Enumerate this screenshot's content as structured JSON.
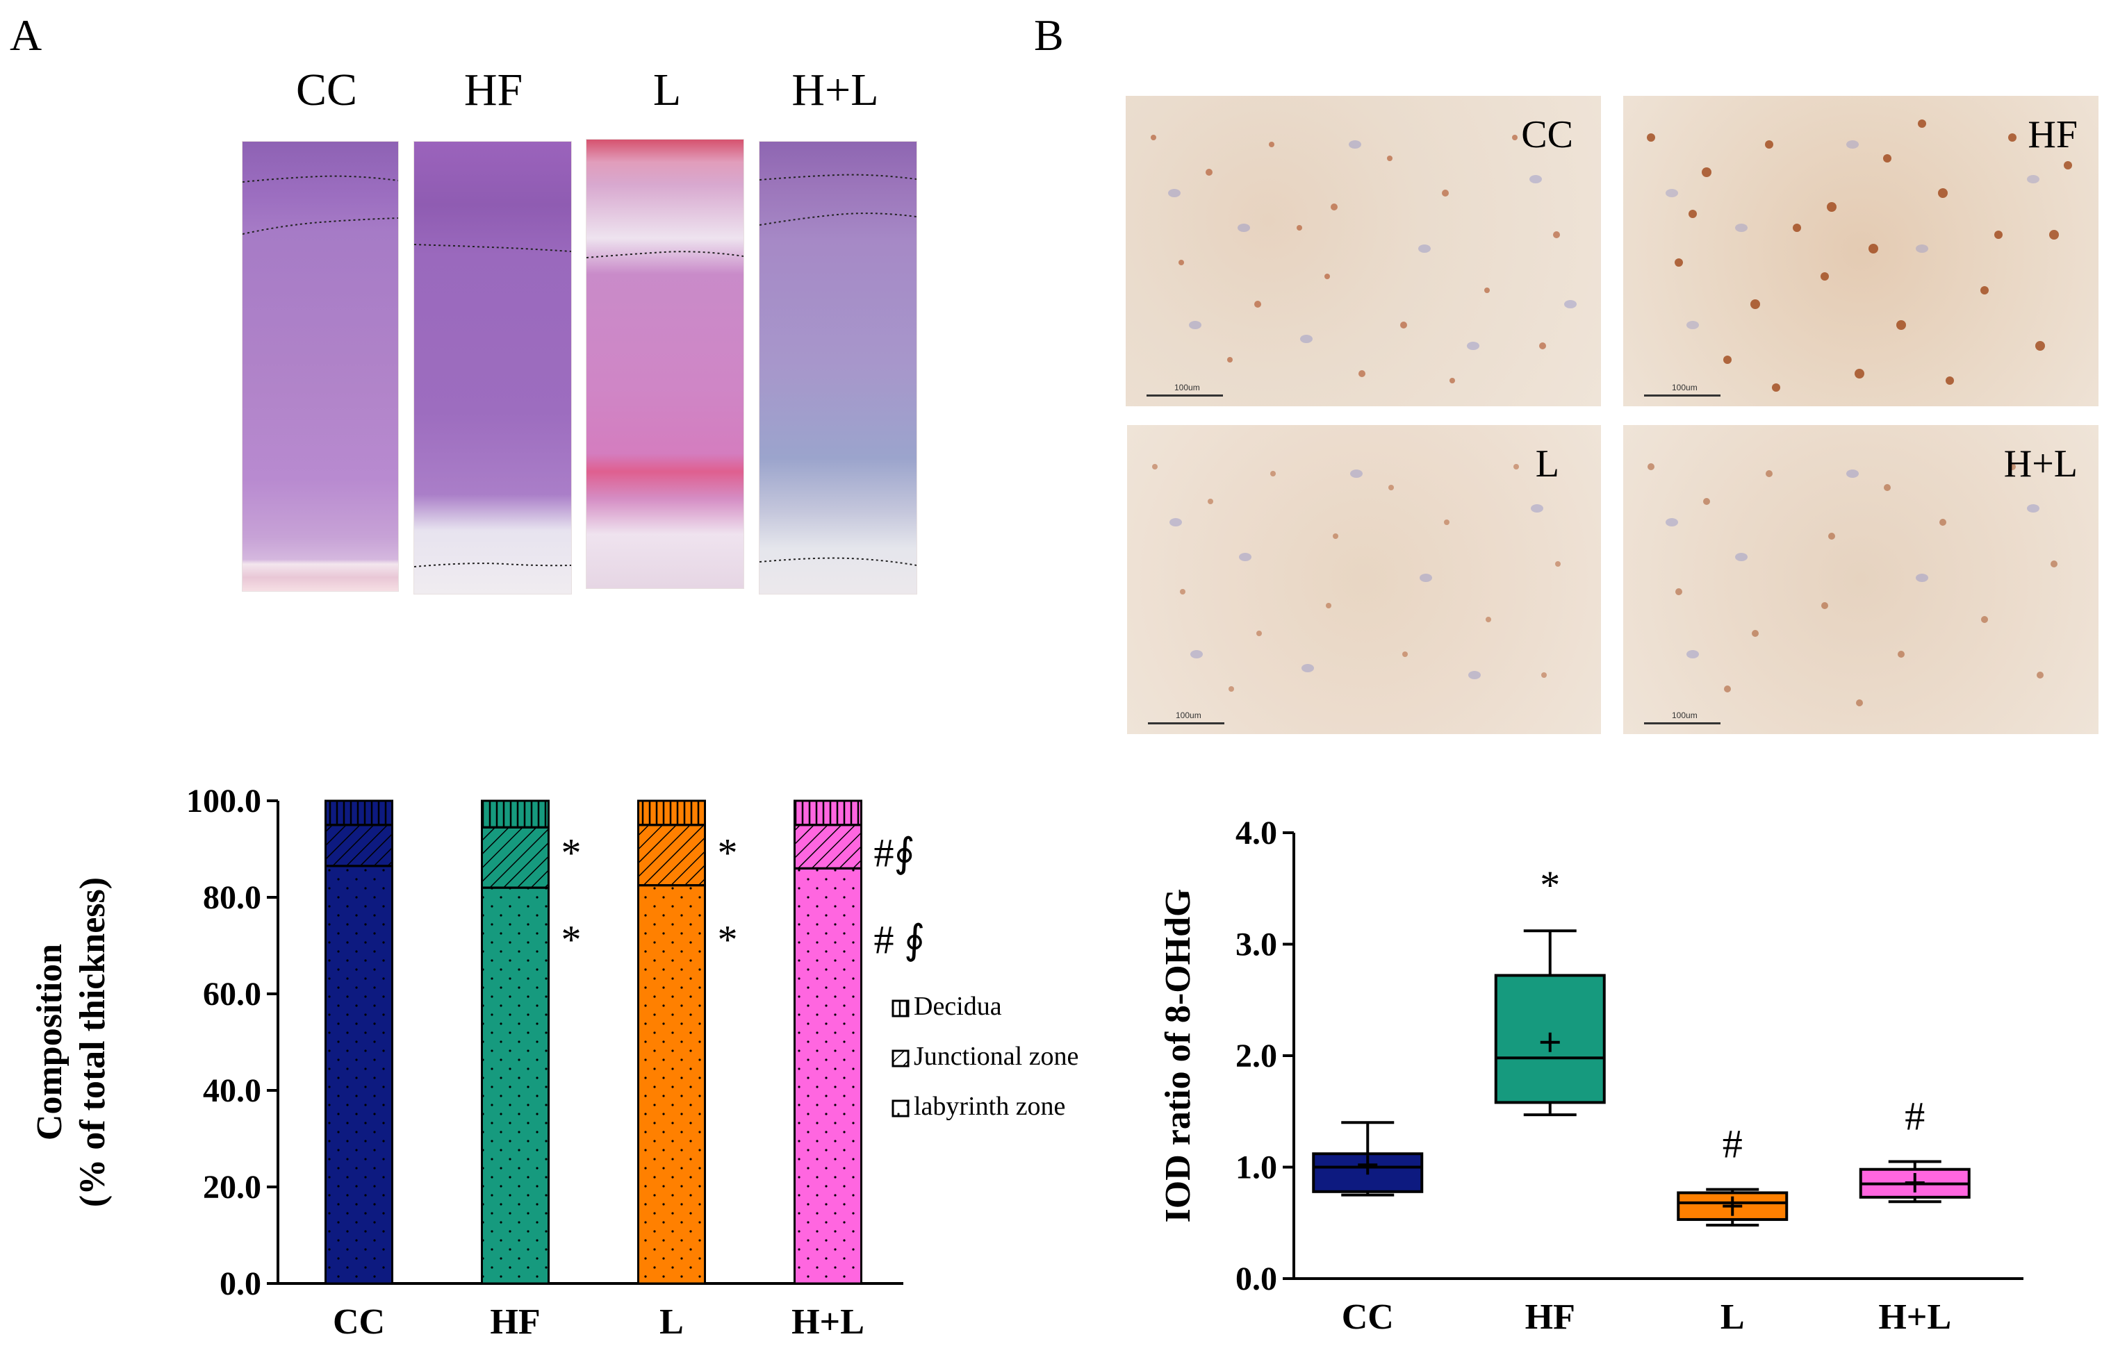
{
  "panelA": {
    "letter": "A",
    "histology_labels": [
      "CC",
      "HF",
      "L",
      "H+L"
    ]
  },
  "panelB": {
    "letter": "B",
    "ihc_labels": [
      "CC",
      "HF",
      "L",
      "H+L"
    ],
    "scale_text": "100um"
  },
  "colors": {
    "CC": "#0d1a80",
    "HF": "#169a7e",
    "L": "#ff8000",
    "H+L": "#ff66e0"
  },
  "chart_data": [
    {
      "type": "bar",
      "stacked": true,
      "ylabel_line1": "Composition",
      "ylabel_line2": "(% of total thickness)",
      "ylim": [
        0,
        100
      ],
      "yticks": [
        "0.0",
        "20.0",
        "40.0",
        "60.0",
        "80.0",
        "100.0"
      ],
      "categories": [
        "CC",
        "HF",
        "L",
        "H+L"
      ],
      "series": [
        {
          "name": "labyrinth zone",
          "values": [
            86.5,
            82.0,
            82.5,
            86.0
          ]
        },
        {
          "name": "Junctional zone",
          "values": [
            8.5,
            12.5,
            12.5,
            9.0
          ]
        },
        {
          "name": "Decidua",
          "values": [
            5.0,
            5.5,
            5.0,
            5.0
          ]
        }
      ],
      "legend_order": [
        "Decidua",
        "Junctional zone",
        "labyrinth zone"
      ],
      "legend_position": "right",
      "annotations": [
        {
          "category": "HF",
          "level": "junctional",
          "text": "*"
        },
        {
          "category": "HF",
          "level": "labyrinth",
          "text": "*"
        },
        {
          "category": "L",
          "level": "junctional",
          "text": "*"
        },
        {
          "category": "L",
          "level": "labyrinth",
          "text": "*"
        },
        {
          "category": "H+L",
          "level": "junctional",
          "text": "#∮"
        },
        {
          "category": "H+L",
          "level": "labyrinth",
          "text": "# ∮"
        }
      ]
    },
    {
      "type": "box",
      "ylabel": "IOD ratio of 8-OHdG",
      "ylim": [
        0,
        4.0
      ],
      "yticks": [
        "0.0",
        "1.0",
        "2.0",
        "3.0",
        "4.0"
      ],
      "categories": [
        "CC",
        "HF",
        "L",
        "H+L"
      ],
      "boxes": [
        {
          "name": "CC",
          "min": 0.75,
          "q1": 0.78,
          "median": 1.0,
          "q3": 1.12,
          "max": 1.4,
          "mean": 1.02,
          "annotation": ""
        },
        {
          "name": "HF",
          "min": 1.47,
          "q1": 1.58,
          "median": 1.98,
          "q3": 2.72,
          "max": 3.12,
          "mean": 2.12,
          "annotation": "*"
        },
        {
          "name": "L",
          "min": 0.48,
          "q1": 0.53,
          "median": 0.68,
          "q3": 0.77,
          "max": 0.8,
          "mean": 0.65,
          "annotation": "#"
        },
        {
          "name": "H+L",
          "min": 0.69,
          "q1": 0.73,
          "median": 0.85,
          "q3": 0.98,
          "max": 1.05,
          "mean": 0.86,
          "annotation": "#"
        }
      ]
    }
  ]
}
